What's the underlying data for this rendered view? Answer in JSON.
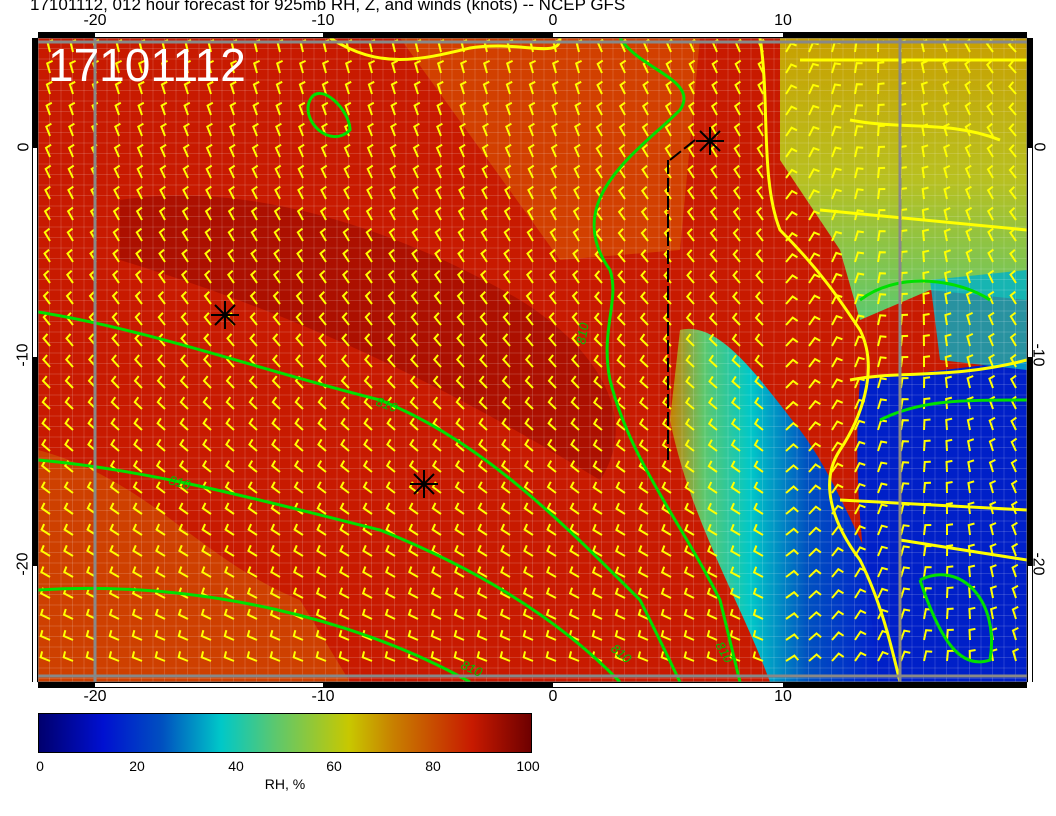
{
  "title": "17101112, 012 hour forecast for 925mb RH, Z, and winds (knots) -- NCEP GFS",
  "stamp": "17101112",
  "lon_ticks_top": [
    "-20",
    "-10",
    "0",
    "10"
  ],
  "lon_ticks_bottom": [
    "-20",
    "-10",
    "0",
    "10"
  ],
  "lat_ticks_left": [
    "0",
    "-10",
    "-20"
  ],
  "lat_ticks_right": [
    "0",
    "-10",
    "-20"
  ],
  "contour_labels": [
    "810",
    "810",
    "810",
    "810",
    "810",
    "810"
  ],
  "colorbar": {
    "label": "RH, %",
    "ticks": [
      "0",
      "20",
      "40",
      "60",
      "80",
      "100"
    ],
    "min": 0,
    "max": 100
  },
  "colors": {
    "wind_barbs": "#ffff00",
    "contours": "#00e000",
    "coastline": "#ffff00",
    "high_rh": "#c81a00",
    "low_rh": "#0010d0"
  },
  "markers": [
    "star",
    "star",
    "star"
  ]
}
